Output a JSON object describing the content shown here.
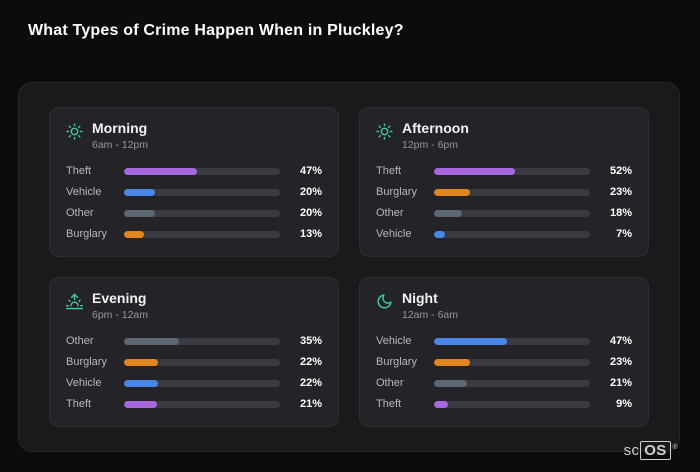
{
  "title": "What Types of Crime Happen When in Pluckley?",
  "logo": {
    "prefix": "sc",
    "boxed": "OS",
    "reg": "®"
  },
  "colors": {
    "Theft": "#a866df",
    "Vehicle": "#4a86e8",
    "Other": "#5d6875",
    "Burglary": "#e0861f",
    "icon_accent": "#3ec9a7",
    "bar_track": "#3a3a41"
  },
  "chart_data": [
    {
      "type": "bar",
      "title": "Morning",
      "subtitle": "6am - 12pm",
      "icon": "sun",
      "categories": [
        "Theft",
        "Vehicle",
        "Other",
        "Burglary"
      ],
      "values": [
        47,
        20,
        20,
        13
      ],
      "unit": "%",
      "xlim": [
        0,
        100
      ],
      "legend": false,
      "grid": false
    },
    {
      "type": "bar",
      "title": "Afternoon",
      "subtitle": "12pm - 6pm",
      "icon": "sun",
      "categories": [
        "Theft",
        "Burglary",
        "Other",
        "Vehicle"
      ],
      "values": [
        52,
        23,
        18,
        7
      ],
      "unit": "%",
      "xlim": [
        0,
        100
      ],
      "legend": false,
      "grid": false
    },
    {
      "type": "bar",
      "title": "Evening",
      "subtitle": "6pm - 12am",
      "icon": "sunset",
      "categories": [
        "Other",
        "Burglary",
        "Vehicle",
        "Theft"
      ],
      "values": [
        35,
        22,
        22,
        21
      ],
      "unit": "%",
      "xlim": [
        0,
        100
      ],
      "legend": false,
      "grid": false
    },
    {
      "type": "bar",
      "title": "Night",
      "subtitle": "12am - 6am",
      "icon": "moon",
      "categories": [
        "Vehicle",
        "Burglary",
        "Other",
        "Theft"
      ],
      "values": [
        47,
        23,
        21,
        9
      ],
      "unit": "%",
      "xlim": [
        0,
        100
      ],
      "legend": false,
      "grid": false
    }
  ]
}
